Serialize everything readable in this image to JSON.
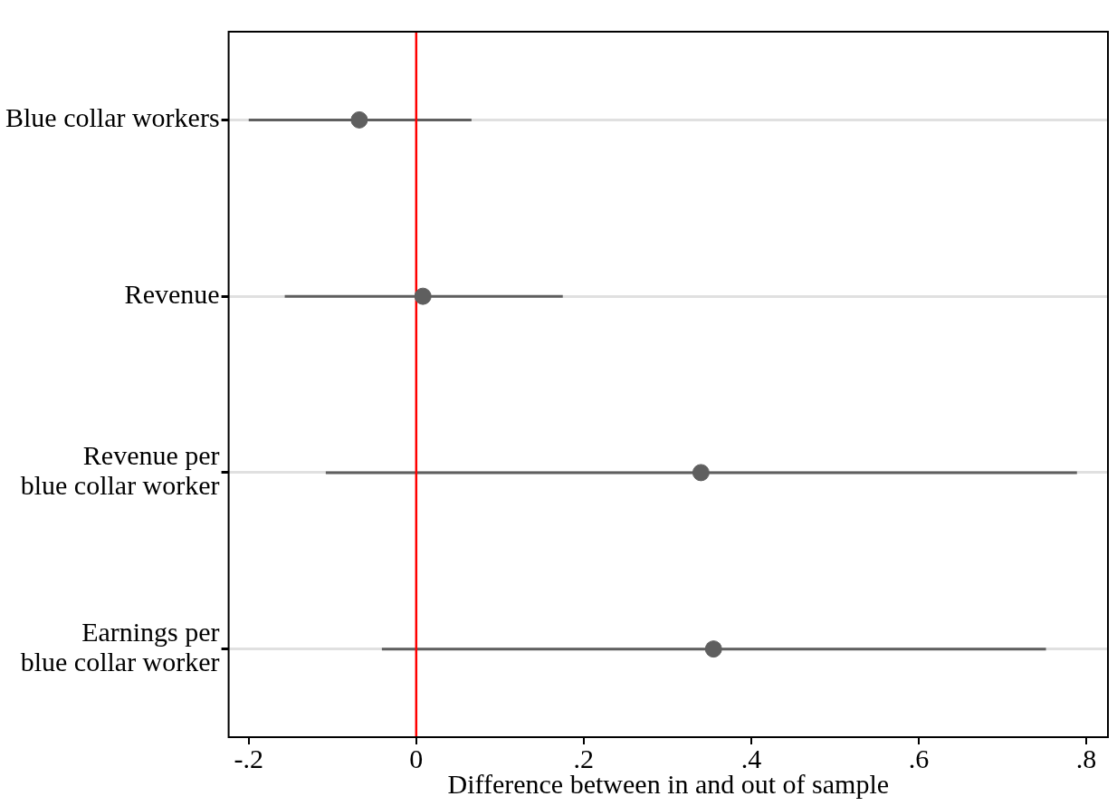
{
  "chart_data": {
    "type": "scatter",
    "orientation": "horizontal",
    "categories": [
      "Blue collar workers",
      "Revenue",
      "Revenue per\nblue collar worker",
      "Earnings per\nblue collar worker"
    ],
    "values": [
      -0.068,
      0.008,
      0.34,
      0.355
    ],
    "errors": [
      [
        -0.2,
        0.066
      ],
      [
        -0.157,
        0.175
      ],
      [
        -0.108,
        0.789
      ],
      [
        -0.041,
        0.752
      ]
    ],
    "color": "#5f5f5f",
    "xlabel": "Difference between in and out of sample",
    "xlim": [
      -0.224,
      0.826
    ],
    "xticks": [
      {
        "value": -0.2,
        "label": "-.2"
      },
      0,
      {
        "value": 0.2,
        "label": ".2"
      },
      {
        "value": 0.4,
        "label": ".4"
      },
      {
        "value": 0.6,
        "label": ".6"
      },
      {
        "value": 0.8,
        "label": ".8"
      }
    ],
    "ref_lines": [
      {
        "axis": "x",
        "value": 0,
        "color": "#ff0000"
      }
    ],
    "grid": "y",
    "legend": false,
    "marker": "circle"
  }
}
